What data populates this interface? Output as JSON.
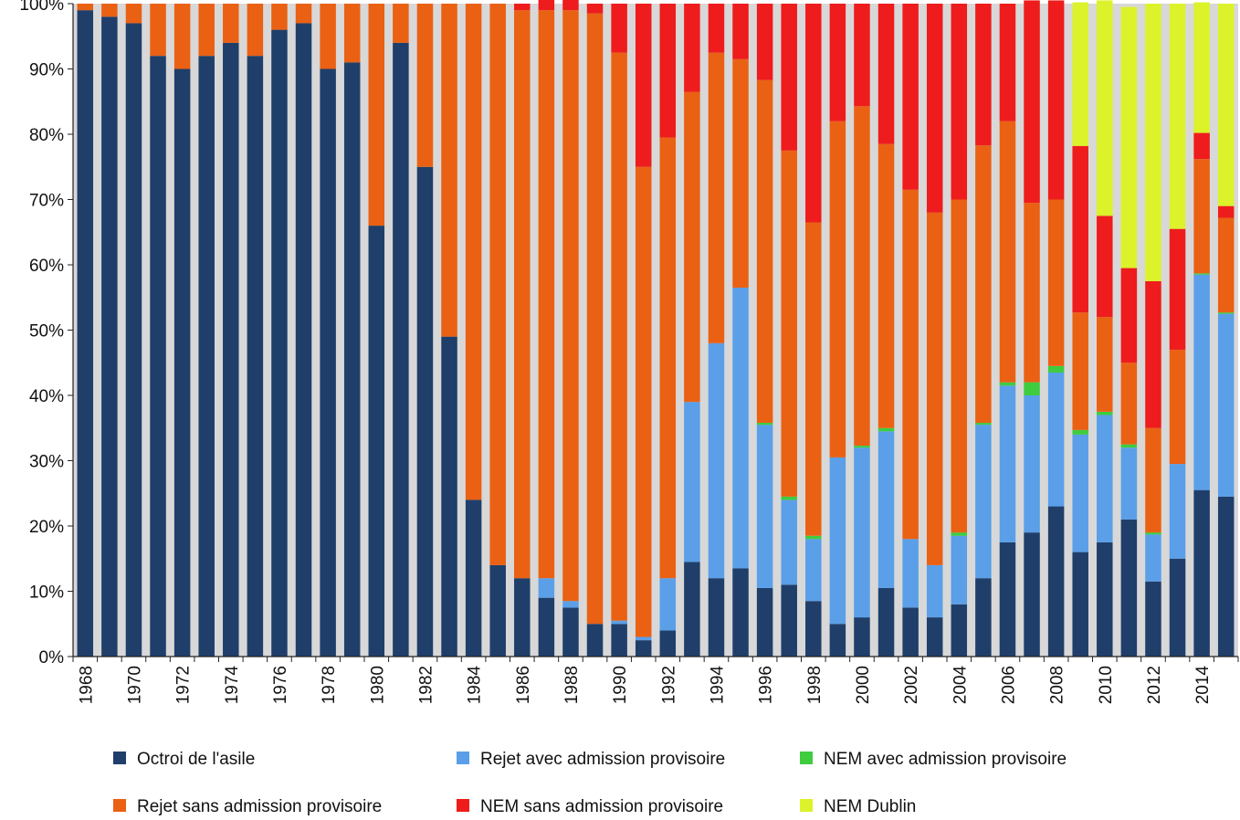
{
  "chart_data": {
    "type": "bar",
    "stacked": true,
    "title": "",
    "xlabel": "",
    "ylabel": "",
    "ylim": [
      0,
      100
    ],
    "y_ticks": [
      "0%",
      "10%",
      "20%",
      "30%",
      "40%",
      "50%",
      "60%",
      "70%",
      "80%",
      "90%",
      "100%"
    ],
    "grid": false,
    "legend_position": "bottom",
    "categories": [
      1968,
      1969,
      1970,
      1971,
      1972,
      1973,
      1974,
      1975,
      1976,
      1977,
      1978,
      1979,
      1980,
      1981,
      1982,
      1983,
      1984,
      1985,
      1986,
      1987,
      1988,
      1989,
      1990,
      1991,
      1992,
      1993,
      1994,
      1995,
      1996,
      1997,
      1998,
      1999,
      2000,
      2001,
      2002,
      2003,
      2004,
      2005,
      2006,
      2007,
      2008,
      2009,
      2010,
      2011,
      2012,
      2013,
      2014,
      2015
    ],
    "x_tick_labels": [
      "1968",
      "1970",
      "1972",
      "1974",
      "1976",
      "1978",
      "1980",
      "1982",
      "1984",
      "1986",
      "1988",
      "1990",
      "1992",
      "1994",
      "1996",
      "1998",
      "2000",
      "2002",
      "2004",
      "2006",
      "2008",
      "2010",
      "2012",
      "2014"
    ],
    "series": [
      {
        "name": "Octroi de l'asile",
        "color": "#1f3f6a",
        "values": [
          99,
          98,
          97,
          92,
          90,
          92,
          94,
          92,
          96,
          97,
          90,
          91,
          66,
          94,
          75,
          49,
          24,
          14,
          12,
          9,
          7.5,
          5,
          5,
          2.5,
          4,
          14.5,
          12,
          13.5,
          10.5,
          11,
          8.5,
          5,
          6,
          10.5,
          7.5,
          6,
          8,
          12,
          17.5,
          19,
          23,
          16,
          17.5,
          21,
          11.5,
          15,
          25.5,
          24.5
        ]
      },
      {
        "name": "Rejet avec admission provisoire",
        "color": "#5a9fe8",
        "values": [
          0,
          0,
          0,
          0,
          0,
          0,
          0,
          0,
          0,
          0,
          0,
          0,
          0,
          0,
          0,
          0,
          0,
          0,
          0,
          3,
          1,
          0,
          0.5,
          0.5,
          8,
          24.5,
          36,
          43,
          25,
          13,
          9.5,
          25.5,
          26,
          24,
          10.5,
          8,
          10.5,
          23.5,
          24,
          21,
          20.5,
          18,
          19.5,
          11,
          7.2,
          14.5,
          33,
          28
        ]
      },
      {
        "name": "NEM avec admission provisoire",
        "color": "#3fcc3f",
        "values": [
          0,
          0,
          0,
          0,
          0,
          0,
          0,
          0,
          0,
          0,
          0,
          0,
          0,
          0,
          0,
          0,
          0,
          0,
          0,
          0,
          0,
          0,
          0,
          0,
          0,
          0,
          0,
          0,
          0.3,
          0.5,
          0.5,
          0,
          0.3,
          0.5,
          0,
          0,
          0.5,
          0.3,
          0.5,
          2,
          1,
          0.7,
          0.5,
          0.5,
          0.3,
          0,
          0.2,
          0.2
        ]
      },
      {
        "name": "Rejet sans admission provisoire",
        "color": "#ea6114",
        "values": [
          1,
          2,
          3,
          8,
          10,
          8,
          6,
          8,
          4,
          3,
          10,
          9,
          34,
          6,
          25,
          51,
          76,
          86,
          87,
          87,
          90.5,
          93.5,
          87,
          72,
          67.5,
          47.5,
          44.5,
          35,
          52.5,
          53,
          48,
          51.5,
          52,
          43.5,
          53.5,
          54,
          51,
          42.5,
          40,
          27.5,
          25.5,
          18,
          14.5,
          12.5,
          16,
          17.5,
          17.5,
          14.5
        ]
      },
      {
        "name": "NEM sans admission provisoire",
        "color": "#ee1c1c",
        "values": [
          0,
          0,
          0,
          0,
          0,
          0,
          0,
          0,
          0,
          0,
          0,
          0,
          0,
          0,
          0,
          0,
          0,
          0,
          1,
          2,
          2,
          1.5,
          7.5,
          25,
          20.5,
          13.5,
          7.5,
          8.5,
          11.7,
          22.5,
          33.5,
          18,
          15.7,
          21.5,
          28.5,
          32,
          30,
          21.7,
          18,
          31,
          30.5,
          25.5,
          15.5,
          14.5,
          22.5,
          18.5,
          4,
          1.8
        ]
      },
      {
        "name": "NEM Dublin",
        "color": "#dcf22a",
        "values": [
          0,
          0,
          0,
          0,
          0,
          0,
          0,
          0,
          0,
          0,
          0,
          0,
          0,
          0,
          0,
          0,
          0,
          0,
          0,
          0,
          0,
          0,
          0,
          0,
          0,
          0,
          0,
          0,
          0,
          0,
          0,
          0,
          0,
          0,
          0,
          0,
          0,
          0,
          0,
          0,
          0,
          22,
          33,
          40,
          42.5,
          34.5,
          20,
          31
        ]
      }
    ]
  }
}
